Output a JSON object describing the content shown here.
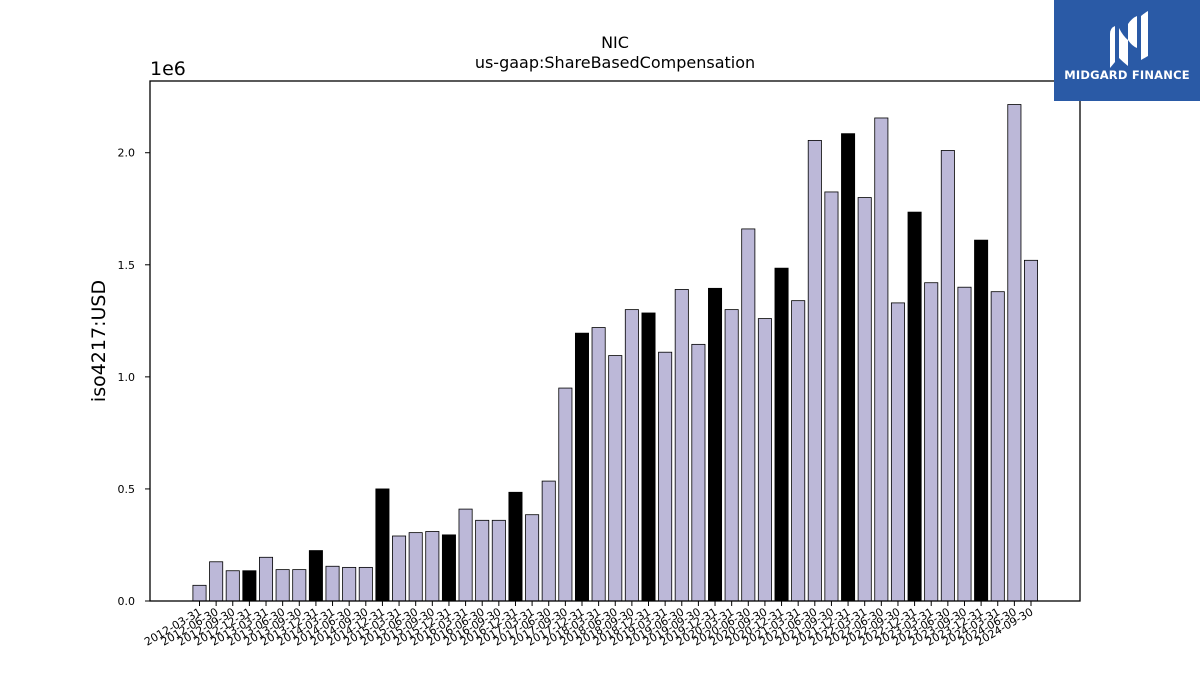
{
  "chart_data": {
    "type": "bar",
    "title": "NIC",
    "subtitle": "us-gaap:ShareBasedCompensation",
    "ylabel": "iso4217:USD",
    "xlabel": "",
    "y_offset_label": "1e6",
    "ylim": [
      0,
      2.32
    ],
    "yticks": [
      "0.0",
      "0.5",
      "1.0",
      "1.5",
      "2.0"
    ],
    "ytick_values": [
      0,
      0.5,
      1.0,
      1.5,
      2.0
    ],
    "grid": false,
    "colors": {
      "annual": "#000000",
      "quarterly": "#bcb8d8",
      "edge": "#000000"
    },
    "categories": [
      "2012-03-31",
      "2012-06-30",
      "2012-09-30",
      "2012-12-31",
      "2013-03-31",
      "2013-06-30",
      "2013-09-30",
      "2013-12-31",
      "2014-03-31",
      "2014-06-30",
      "2014-09-30",
      "2014-12-31",
      "2015-03-31",
      "2015-06-30",
      "2015-09-30",
      "2015-12-31",
      "2016-03-31",
      "2016-06-30",
      "2016-09-30",
      "2016-12-31",
      "2017-03-31",
      "2017-06-30",
      "2017-09-30",
      "2017-12-31",
      "2018-03-31",
      "2018-06-30",
      "2018-09-30",
      "2018-12-31",
      "2019-03-31",
      "2019-06-30",
      "2019-09-30",
      "2019-12-31",
      "2020-03-31",
      "2020-06-30",
      "2020-09-30",
      "2020-12-31",
      "2021-03-31",
      "2021-06-30",
      "2021-09-30",
      "2021-12-31",
      "2022-03-31",
      "2022-06-30",
      "2022-09-30",
      "2022-12-31",
      "2023-03-31",
      "2023-06-30",
      "2023-09-30",
      "2023-12-31",
      "2024-03-31",
      "2024-06-30",
      "2024-09-30"
    ],
    "values": [
      0.07,
      0.175,
      0.135,
      0.135,
      0.195,
      0.14,
      0.14,
      0.225,
      0.155,
      0.15,
      0.15,
      0.5,
      0.29,
      0.305,
      0.31,
      0.295,
      0.41,
      0.36,
      0.36,
      0.485,
      0.385,
      0.535,
      0.95,
      1.195,
      1.22,
      1.095,
      1.3,
      1.285,
      1.11,
      1.39,
      1.145,
      1.395,
      1.3,
      1.66,
      1.26,
      1.485,
      1.34,
      2.055,
      1.825,
      2.085,
      1.8,
      2.155,
      1.33,
      1.735,
      1.42,
      2.01,
      1.4,
      1.61,
      1.38,
      2.215,
      1.52
    ],
    "highlighted": [
      false,
      false,
      false,
      true,
      false,
      false,
      false,
      true,
      false,
      false,
      false,
      true,
      false,
      false,
      false,
      true,
      false,
      false,
      false,
      true,
      false,
      false,
      false,
      true,
      false,
      false,
      false,
      true,
      false,
      false,
      false,
      true,
      false,
      false,
      false,
      true,
      false,
      false,
      false,
      true,
      false,
      false,
      false,
      true,
      false,
      false,
      false,
      true,
      false,
      false,
      false
    ]
  },
  "logo": {
    "text": "MIDGARD FINANCE",
    "icon": "midgard-logo-icon"
  }
}
